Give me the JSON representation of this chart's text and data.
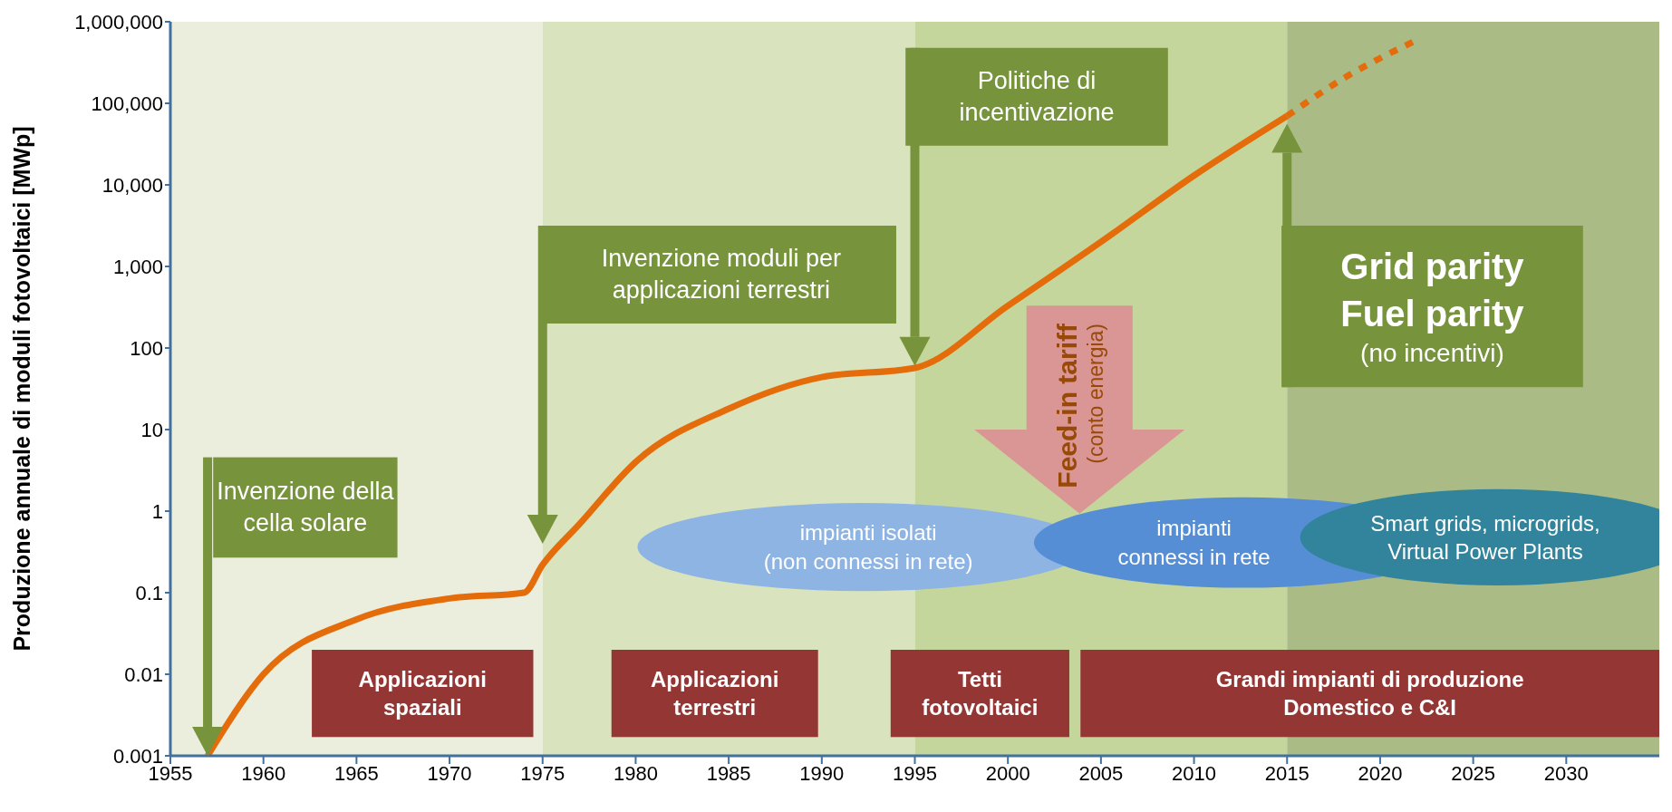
{
  "chart_data": {
    "type": "line",
    "ylabel": "Produzione annuale di moduli fotovoltaici [MWp]",
    "series": [
      {
        "color": "#e46c0a",
        "line_style": "solid",
        "x": [
          1957,
          1960,
          1965,
          1970,
          1974,
          1975,
          1977,
          1980,
          1985,
          1990,
          1995,
          2000,
          2005,
          2010,
          2015
        ],
        "values": [
          0.001,
          0.01,
          0.047,
          0.085,
          0.1,
          0.22,
          0.7,
          4,
          18,
          44,
          57,
          330,
          2000,
          13000,
          70000
        ]
      },
      {
        "color": "#e46c0a",
        "line_style": "dotted",
        "x": [
          2015,
          2018,
          2022
        ],
        "values": [
          70000,
          200000,
          600000
        ]
      }
    ],
    "xlim": [
      1955,
      2035
    ],
    "xticks": [
      1955,
      1960,
      1965,
      1970,
      1975,
      1980,
      1985,
      1990,
      1995,
      2000,
      2005,
      2010,
      2015,
      2020,
      2025,
      2030
    ],
    "ylim": [
      0.001,
      1000000
    ],
    "yticks": [
      0.001,
      0.01,
      0.1,
      1,
      10,
      100,
      {
        "value": 1000,
        "label": "1,000"
      },
      {
        "value": 10000,
        "label": "10,000"
      },
      {
        "value": 100000,
        "label": "100,000"
      },
      {
        "value": 1000000,
        "label": "1,000,000"
      }
    ],
    "log": "y",
    "marker": "none",
    "bands": [
      {
        "axis": "x",
        "from": 1955,
        "to": 1975,
        "color": "#ebeedd"
      },
      {
        "axis": "x",
        "from": 1975,
        "to": 1995,
        "color": "#d9e3bd"
      },
      {
        "axis": "x",
        "from": 1995,
        "to": 2015,
        "color": "#c4d69c"
      },
      {
        "axis": "x",
        "from": 2015,
        "to": 2035,
        "color": "#aabb85"
      }
    ],
    "annotations": [
      "Invenzione della\ncella solare",
      "Invenzione moduli per\napplicazioni terrestri",
      "Politiche di\nincentivazione",
      "Grid parity\nFuel parity\n(no incentivi)",
      "Feed-in tariff\n(conto energia)",
      "impianti isolati\n(non connessi in rete)",
      "impianti\nconnessi in rete",
      "Smart grids, microgrids,\nVirtual Power Plants",
      "Applicazioni\nspaziali",
      "Applicazioni\nterrestri",
      "Tetti\nfotovoltaici",
      "Grandi impianti di produzione\nDomestico e C&I"
    ]
  }
}
